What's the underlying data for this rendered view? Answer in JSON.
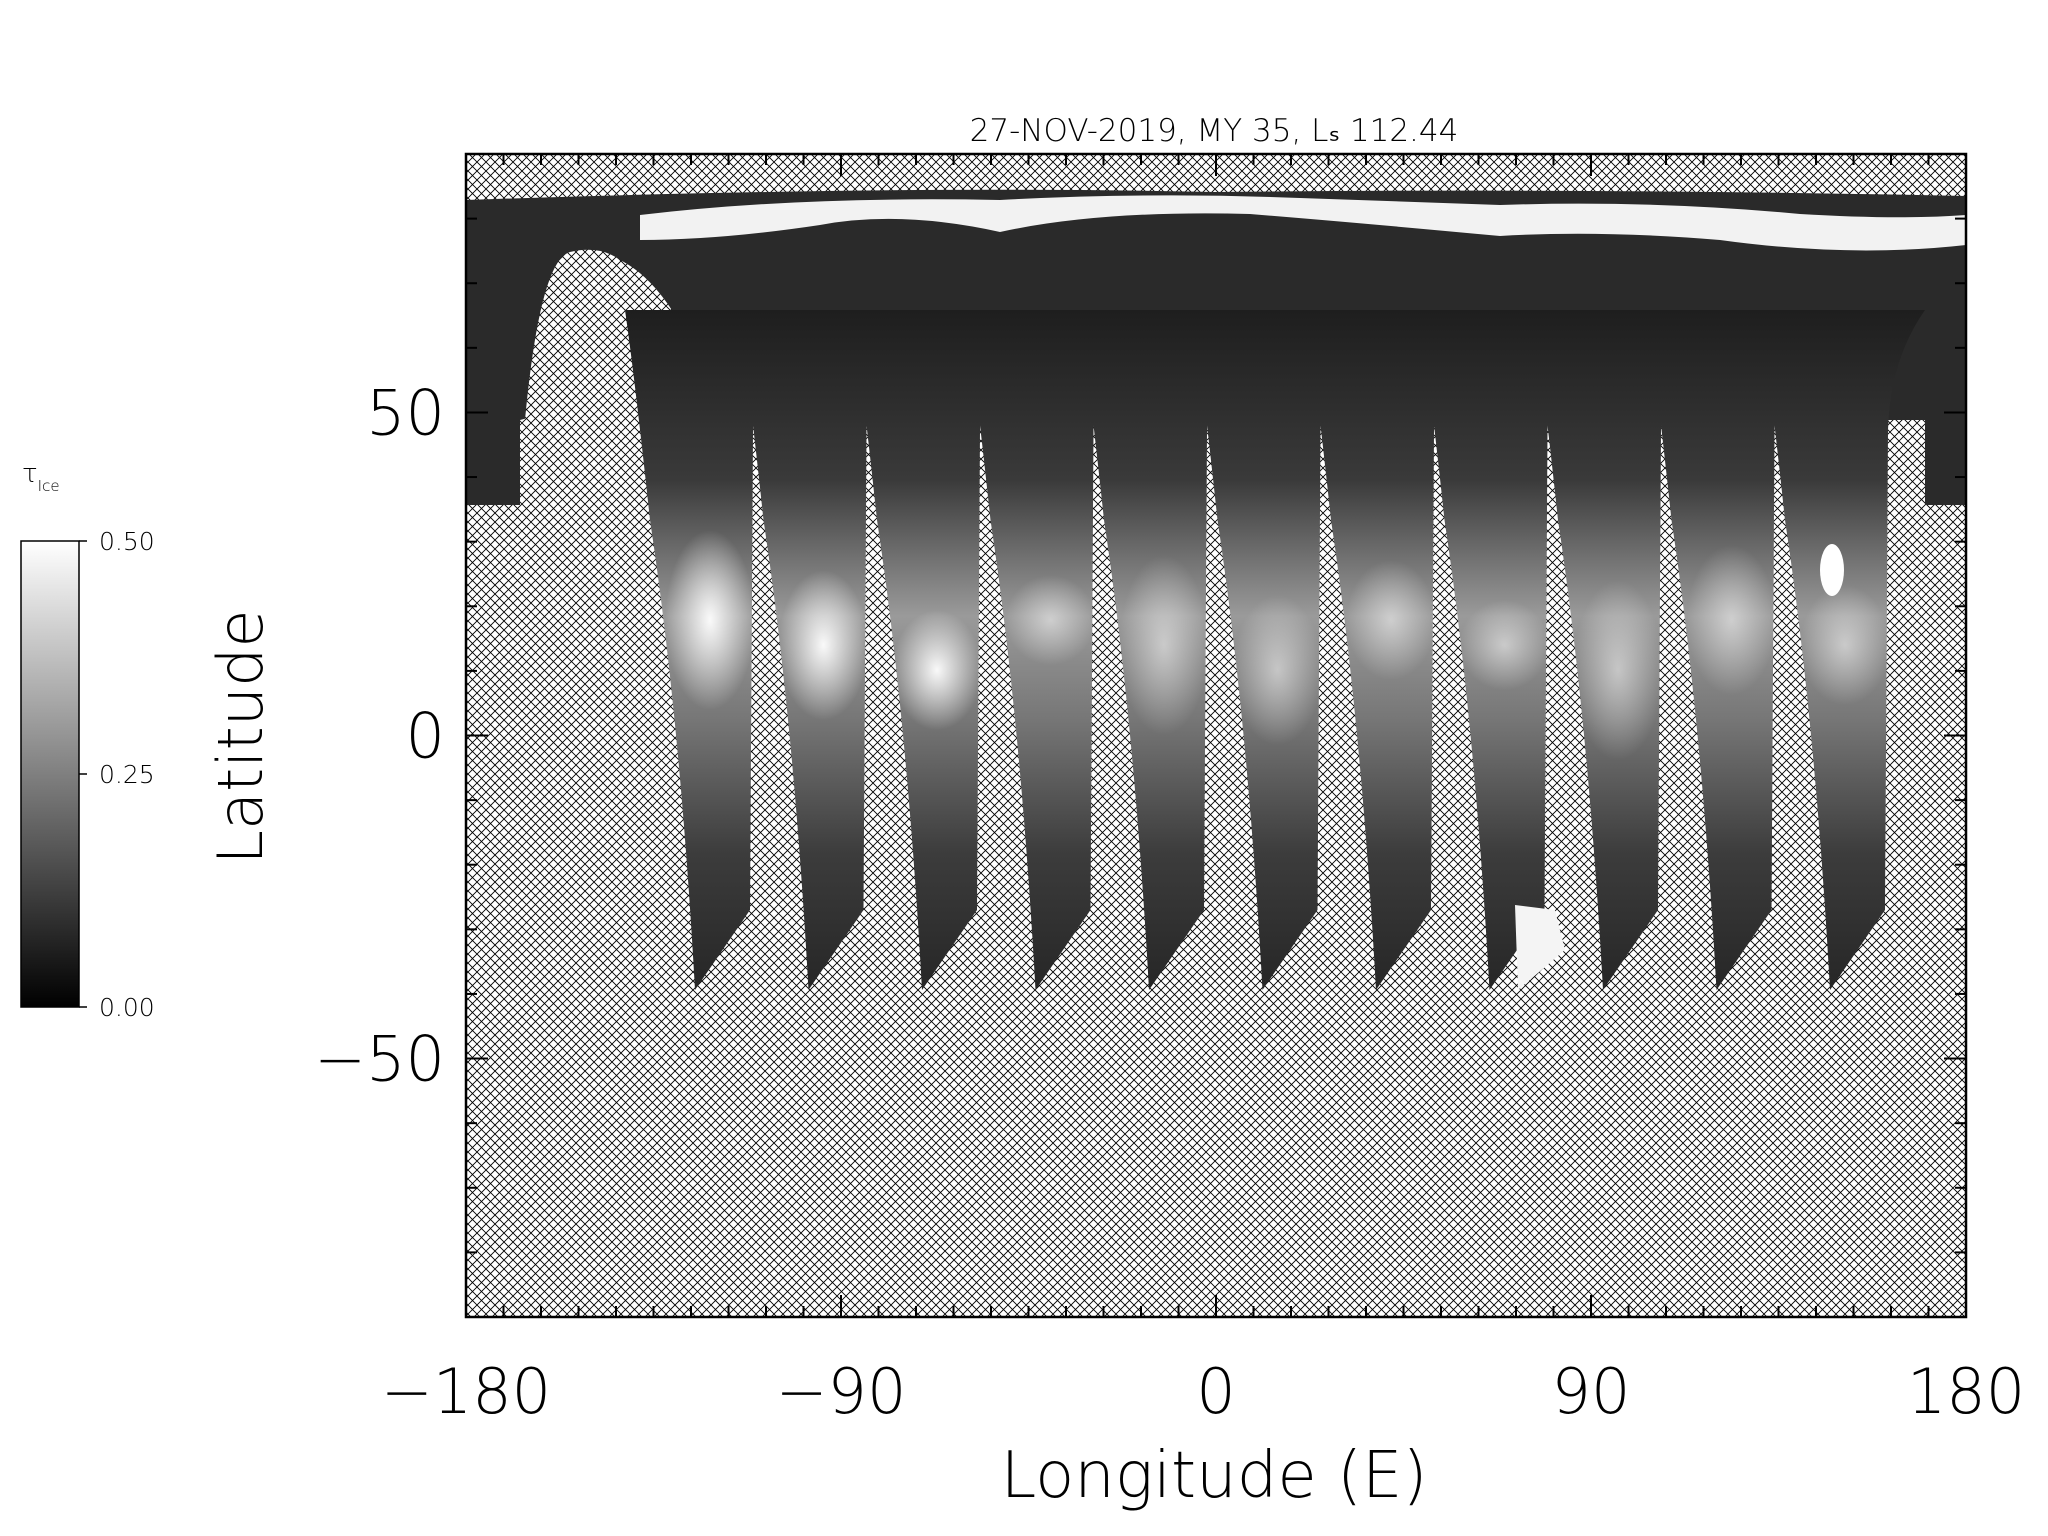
{
  "chart_data": {
    "type": "map",
    "title": "27-NOV-2019, MY 35,  Lₛ 112.44",
    "xlabel": "Longitude (E)",
    "ylabel": "Latitude",
    "xlim": [
      -180,
      180
    ],
    "ylim": [
      -90,
      90
    ],
    "xticks": [
      {
        "value": -180,
        "label": "−180"
      },
      {
        "value": -90,
        "label": "−90"
      },
      0,
      90,
      180
    ],
    "yticks": [
      {
        "value": -50,
        "label": "−50"
      },
      0,
      50
    ],
    "xminorticks": [
      -171,
      -162,
      -153,
      -144,
      -135,
      -126,
      -117,
      -108,
      -99,
      -81,
      -72,
      -63,
      -54,
      -45,
      -36,
      -27,
      -18,
      -9,
      9,
      18,
      27,
      36,
      45,
      54,
      63,
      72,
      81,
      99,
      108,
      117,
      126,
      135,
      144,
      153,
      162,
      171
    ],
    "yminorticks": [
      -80,
      -70,
      -60,
      -40,
      -30,
      -20,
      -10,
      10,
      20,
      30,
      40,
      60,
      70,
      80
    ],
    "colorbar": {
      "label": "τ",
      "label_sub": "Ice",
      "lim": [
        0,
        0.5
      ],
      "ticks": [
        {
          "value": 0,
          "label": "0.00"
        },
        {
          "value": 0.25,
          "label": "0.25"
        },
        {
          "value": 0.5,
          "label": "0.50"
        }
      ],
      "colors": [
        "#000000",
        "#ffffff"
      ]
    }
  }
}
